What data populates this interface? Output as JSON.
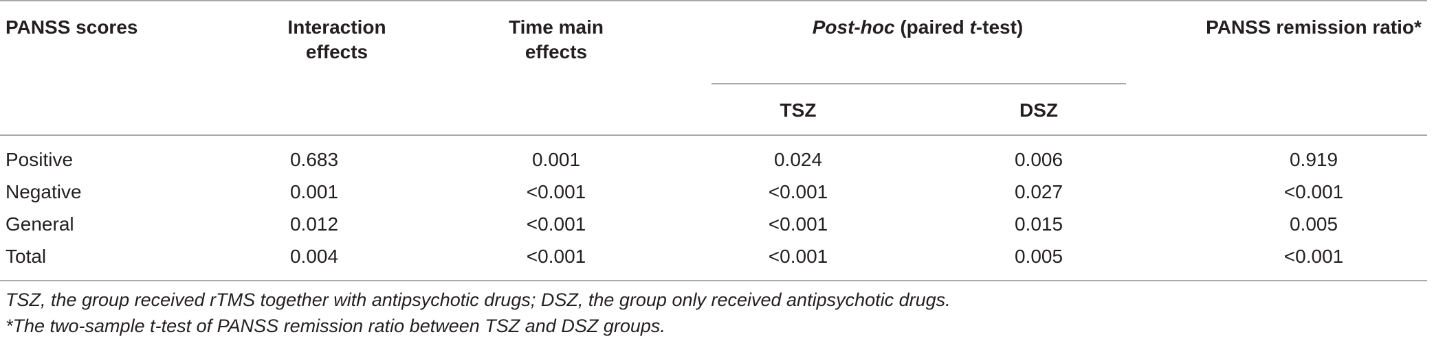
{
  "table": {
    "headers": {
      "panss_scores": "PANSS scores",
      "interaction_line1": "Interaction",
      "interaction_line2": "effects",
      "time_line1": "Time main",
      "time_line2": "effects",
      "posthoc_italic": "Post-hoc",
      "posthoc_mid": " (paired ",
      "posthoc_t": "t",
      "posthoc_end": "-test)",
      "tsz": "TSZ",
      "dsz": "DSZ",
      "remission": "PANSS remission ratio*"
    },
    "rows": [
      {
        "label": "Positive",
        "interaction": "0.683",
        "time": "0.001",
        "tsz": "0.024",
        "dsz": "0.006",
        "remission": "0.919"
      },
      {
        "label": "Negative",
        "interaction": "0.001",
        "time": "<0.001",
        "tsz": "<0.001",
        "dsz": "0.027",
        "remission": "<0.001"
      },
      {
        "label": "General",
        "interaction": "0.012",
        "time": "<0.001",
        "tsz": "<0.001",
        "dsz": "0.015",
        "remission": "0.005"
      },
      {
        "label": "Total",
        "interaction": "0.004",
        "time": "<0.001",
        "tsz": "<0.001",
        "dsz": "0.005",
        "remission": "<0.001"
      }
    ]
  },
  "footnotes": {
    "line1": "TSZ, the group received rTMS together with antipsychotic drugs; DSZ, the group only received antipsychotic drugs.",
    "line2": "*The two-sample t-test of PANSS remission ratio between TSZ and DSZ groups."
  }
}
